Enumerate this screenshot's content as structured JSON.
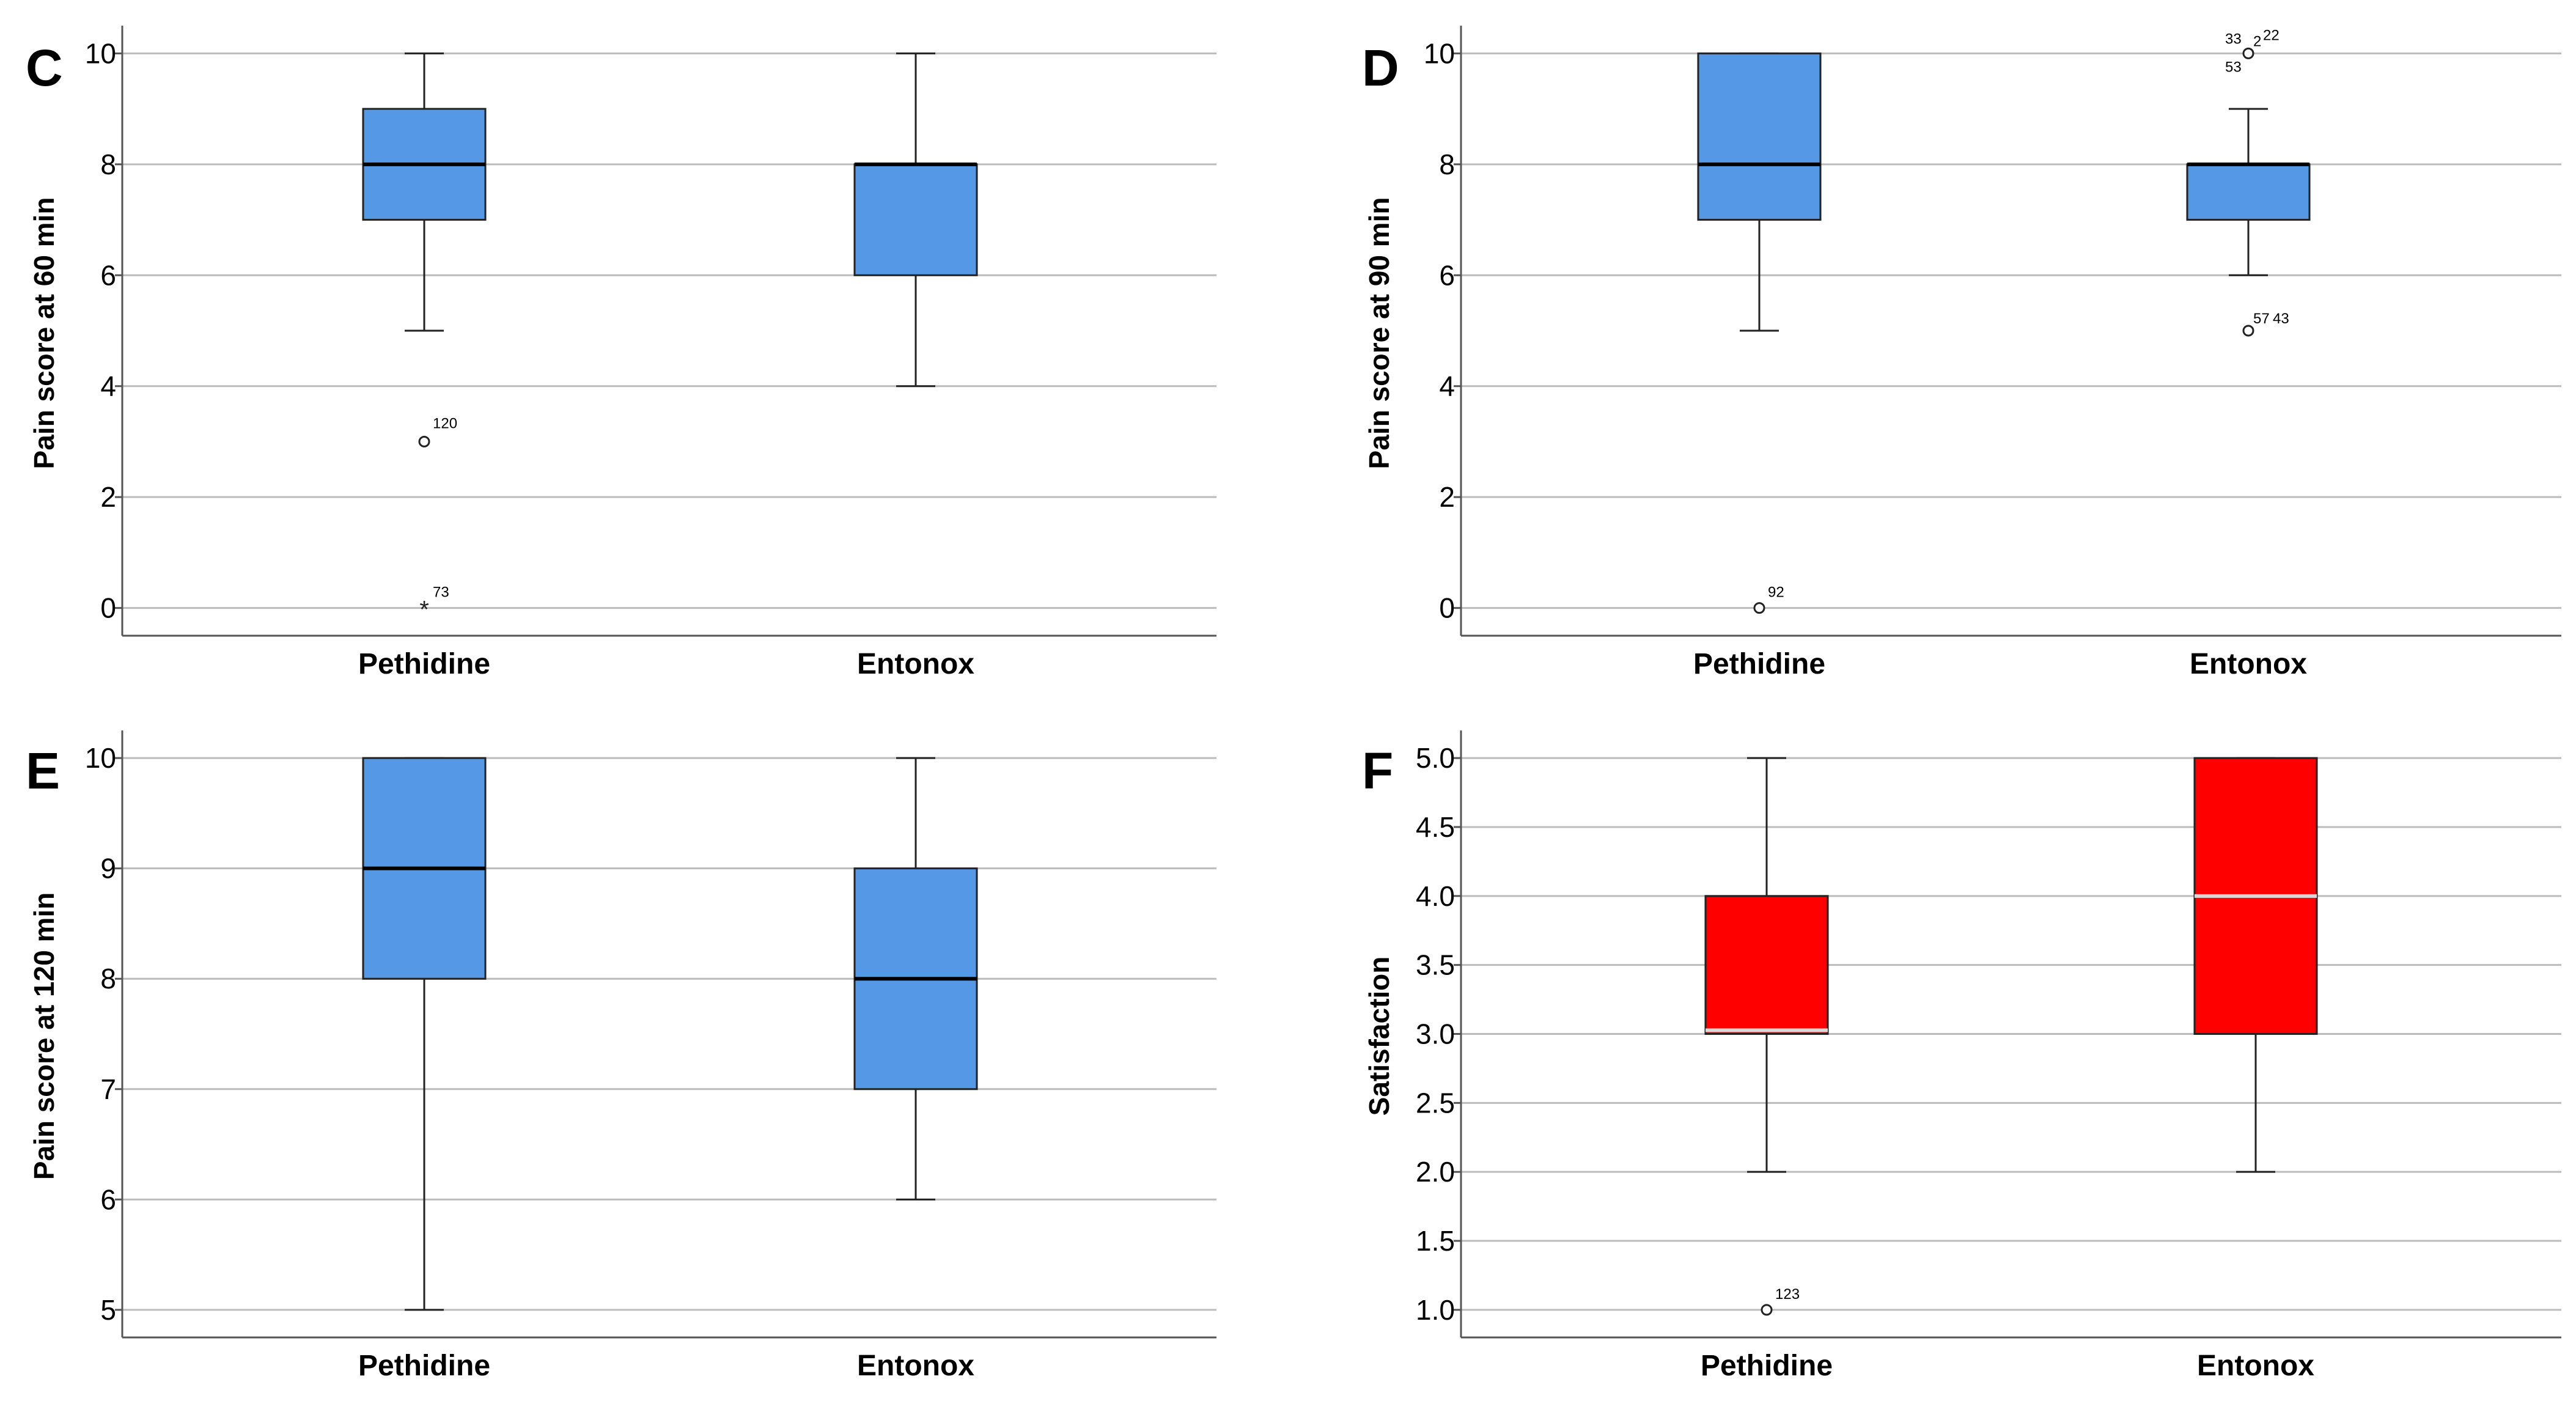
{
  "colors": {
    "box_blue": "#5599e6",
    "box_red": "#ff0000",
    "grid": "#bcbcbc",
    "axis": "#555555",
    "median_dark": "#000000",
    "median_light": "#d8d8d8"
  },
  "chart_data": [
    {
      "type": "boxplot",
      "panel": "C",
      "title": "",
      "ylabel": "Pain score at 60 min",
      "xlabel": "",
      "categories": [
        "Pethidine",
        "Entonox"
      ],
      "ylim": [
        -0.5,
        10.5
      ],
      "yticks": [
        0,
        2,
        4,
        6,
        8,
        10
      ],
      "ytick_labels": [
        "0",
        "2",
        "4",
        "6",
        "8",
        "10"
      ],
      "grid": true,
      "box_color": "#5599e6",
      "median_color": "#000000",
      "boxes": [
        {
          "min": 5,
          "q1": 7,
          "median": 8,
          "q3": 9,
          "max": 10,
          "outliers": [
            {
              "value": 3,
              "label": "120",
              "marker": "o"
            },
            {
              "value": 0,
              "label": "73",
              "marker": "*"
            }
          ]
        },
        {
          "min": 4,
          "q1": 6,
          "median": 8,
          "q3": 8,
          "max": 10,
          "outliers": []
        }
      ]
    },
    {
      "type": "boxplot",
      "panel": "D",
      "title": "",
      "ylabel": "Pain score at 90 min",
      "xlabel": "",
      "categories": [
        "Pethidine",
        "Entonox"
      ],
      "ylim": [
        -0.5,
        10.5
      ],
      "yticks": [
        0,
        2,
        4,
        6,
        8,
        10
      ],
      "ytick_labels": [
        "0",
        "2",
        "4",
        "6",
        "8",
        "10"
      ],
      "grid": true,
      "box_color": "#5599e6",
      "median_color": "#000000",
      "boxes": [
        {
          "min": 5,
          "q1": 7,
          "median": 8,
          "q3": 10,
          "max": 10,
          "outliers": [
            {
              "value": 0,
              "label": "92",
              "marker": "o"
            }
          ]
        },
        {
          "min": 6,
          "q1": 7,
          "median": 8,
          "q3": 8,
          "max": 9,
          "outliers": [
            {
              "value": 10,
              "label": "33",
              "marker": "o"
            },
            {
              "value": 10,
              "label": "2",
              "marker": ""
            },
            {
              "value": 10,
              "label": "22",
              "marker": ""
            },
            {
              "value": 10,
              "label": "53",
              "marker": ""
            },
            {
              "value": 5,
              "label": "57",
              "marker": "o"
            },
            {
              "value": 5,
              "label": "43",
              "marker": ""
            }
          ]
        }
      ]
    },
    {
      "type": "boxplot",
      "panel": "E",
      "title": "",
      "ylabel": "Pain score at 120 min",
      "xlabel": "",
      "categories": [
        "Pethidine",
        "Entonox"
      ],
      "ylim": [
        4.75,
        10.25
      ],
      "yticks": [
        5,
        6,
        7,
        8,
        9,
        10
      ],
      "ytick_labels": [
        "5",
        "6",
        "7",
        "8",
        "9",
        "10"
      ],
      "grid": true,
      "box_color": "#5599e6",
      "median_color": "#000000",
      "boxes": [
        {
          "min": 5,
          "q1": 8,
          "median": 9,
          "q3": 10,
          "max": 10,
          "outliers": []
        },
        {
          "min": 6,
          "q1": 7,
          "median": 8,
          "q3": 9,
          "max": 10,
          "outliers": []
        }
      ]
    },
    {
      "type": "boxplot",
      "panel": "F",
      "title": "",
      "ylabel": "Satisfaction",
      "xlabel": "",
      "categories": [
        "Pethidine",
        "Entonox"
      ],
      "ylim": [
        0.8,
        5.2
      ],
      "yticks": [
        1.0,
        1.5,
        2.0,
        2.5,
        3.0,
        3.5,
        4.0,
        4.5,
        5.0
      ],
      "ytick_labels": [
        "1.0",
        "1.5",
        "2.0",
        "2.5",
        "3.0",
        "3.5",
        "4.0",
        "4.5",
        "5.0"
      ],
      "grid": true,
      "box_color": "#ff0000",
      "median_color": "#d8d8d8",
      "boxes": [
        {
          "min": 2,
          "q1": 3,
          "median": 3,
          "q3": 4,
          "max": 5,
          "outliers": [
            {
              "value": 1,
              "label": "123",
              "marker": "o"
            }
          ]
        },
        {
          "min": 2,
          "q1": 3,
          "median": 4,
          "q3": 5,
          "max": 5,
          "outliers": []
        }
      ]
    }
  ]
}
